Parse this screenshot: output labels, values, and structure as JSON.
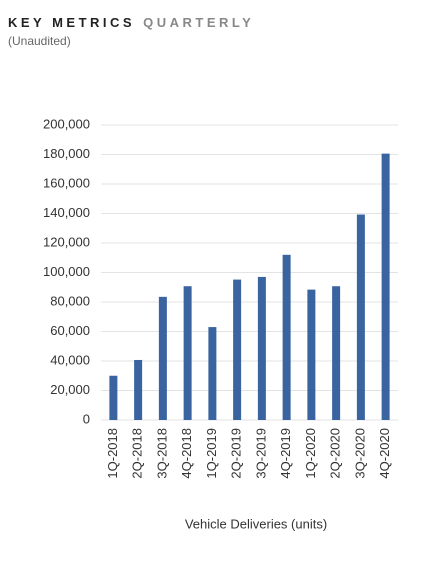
{
  "chart_data": {
    "type": "bar",
    "title": "KEY METRICS",
    "title_2": "QUARTERLY",
    "subtitle": "(Unaudited)",
    "x_label": "Vehicle Deliveries (units)",
    "categories": [
      "1Q-2018",
      "2Q-2018",
      "3Q-2018",
      "4Q-2018",
      "1Q-2019",
      "2Q-2019",
      "3Q-2019",
      "4Q-2019",
      "1Q-2020",
      "2Q-2020",
      "3Q-2020",
      "4Q-2020"
    ],
    "values": [
      30000,
      40700,
      83500,
      90700,
      63000,
      95200,
      97000,
      112000,
      88400,
      90700,
      139300,
      180600
    ],
    "color": "#3a64a0",
    "ylim": [
      0,
      200000
    ],
    "yticks": [
      0,
      {
        "value": 20000,
        "label": "20,000"
      },
      {
        "value": 40000,
        "label": "40,000"
      },
      {
        "value": 60000,
        "label": "60,000"
      },
      {
        "value": 80000,
        "label": "80,000"
      },
      {
        "value": 100000,
        "label": "100,000"
      },
      {
        "value": 120000,
        "label": "120,000"
      },
      {
        "value": 140000,
        "label": "140,000"
      },
      {
        "value": 160000,
        "label": "160,000"
      },
      {
        "value": 180000,
        "label": "180,000"
      },
      {
        "value": 200000,
        "label": "200,000"
      }
    ],
    "grid": true
  }
}
